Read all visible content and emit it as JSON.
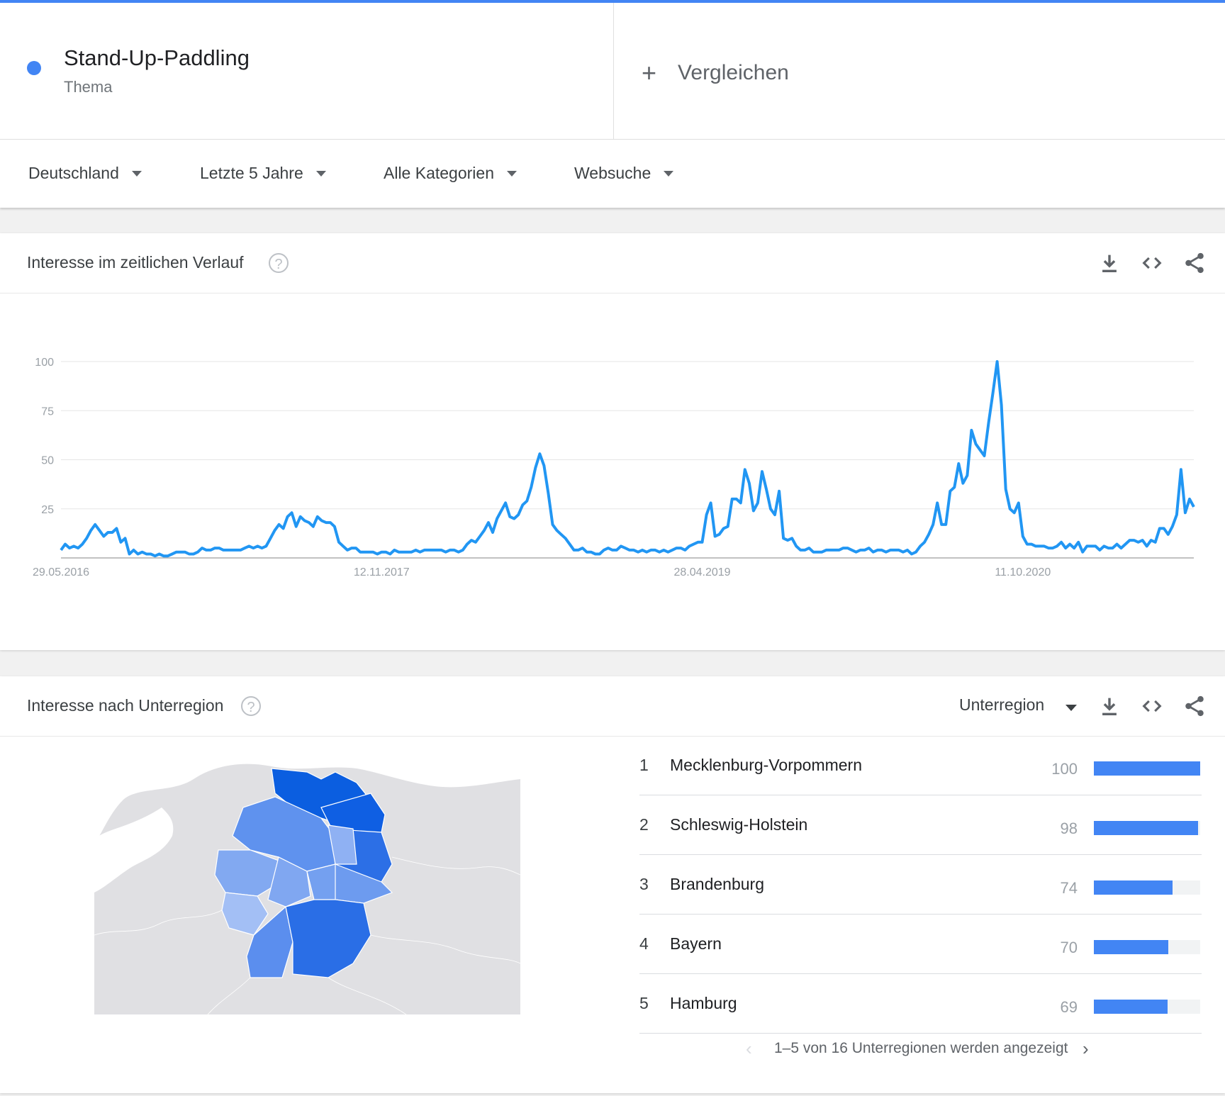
{
  "term": {
    "title": "Stand-Up-Paddling",
    "type": "Thema",
    "color": "#4285f4"
  },
  "compare": {
    "label": "Vergleichen"
  },
  "filters": [
    {
      "label": "Deutschland"
    },
    {
      "label": "Letzte 5 Jahre"
    },
    {
      "label": "Alle Kategorien"
    },
    {
      "label": "Websuche"
    }
  ],
  "time_section": {
    "title": "Interesse im zeitlichen Verlauf"
  },
  "region_section": {
    "title": "Interesse nach Unterregion",
    "selector": "Unterregion"
  },
  "chart_data": {
    "type": "line",
    "title": "",
    "xlabel": "",
    "ylabel": "",
    "ylim": [
      0,
      100
    ],
    "yticks": [
      100,
      75,
      50,
      25
    ],
    "xtick_labels": [
      {
        "label": "29.05.2016",
        "x": 0
      },
      {
        "label": "12.11.2017",
        "x": 75
      },
      {
        "label": "28.04.2019",
        "x": 150
      },
      {
        "label": "11.10.2020",
        "x": 225
      }
    ],
    "grid": true,
    "color": "#2196f3",
    "series": [
      {
        "values": [
          4,
          7,
          5,
          6,
          5,
          7,
          10,
          14,
          17,
          14,
          11,
          13,
          13,
          15,
          8,
          10,
          2,
          4,
          2,
          3,
          2,
          2,
          1,
          2,
          1,
          1,
          2,
          3,
          3,
          3,
          2,
          2,
          3,
          5,
          4,
          4,
          5,
          5,
          4,
          4,
          4,
          4,
          4,
          5,
          6,
          5,
          6,
          5,
          6,
          10,
          14,
          17,
          15,
          21,
          23,
          16,
          21,
          19,
          18,
          16,
          21,
          19,
          18,
          18,
          16,
          8,
          6,
          4,
          5,
          5,
          3,
          3,
          3,
          3,
          2,
          3,
          3,
          2,
          4,
          3,
          3,
          3,
          3,
          4,
          3,
          4,
          4,
          4,
          4,
          4,
          3,
          4,
          4,
          3,
          4,
          7,
          9,
          8,
          11,
          14,
          18,
          13,
          20,
          24,
          28,
          21,
          20,
          22,
          27,
          29,
          36,
          46,
          53,
          47,
          33,
          17,
          14,
          12,
          10,
          7,
          4,
          4,
          5,
          3,
          3,
          2,
          2,
          4,
          5,
          4,
          4,
          6,
          5,
          4,
          4,
          3,
          4,
          3,
          4,
          4,
          3,
          4,
          3,
          4,
          5,
          5,
          4,
          6,
          7,
          8,
          8,
          22,
          28,
          11,
          12,
          15,
          16,
          30,
          30,
          28,
          45,
          38,
          24,
          28,
          44,
          35,
          25,
          22,
          34,
          10,
          9,
          10,
          6,
          4,
          4,
          5,
          3,
          3,
          3,
          4,
          4,
          4,
          4,
          5,
          5,
          4,
          3,
          4,
          4,
          5,
          3,
          4,
          4,
          3,
          4,
          4,
          4,
          3,
          4,
          2,
          3,
          6,
          8,
          12,
          17,
          28,
          17,
          17,
          34,
          36,
          48,
          38,
          42,
          65,
          58,
          55,
          52,
          69,
          84,
          100,
          78,
          35,
          25,
          23,
          28,
          11,
          7,
          7,
          6,
          6,
          6,
          5,
          5,
          6,
          8,
          5,
          7,
          5,
          8,
          3,
          6,
          6,
          6,
          4,
          6,
          5,
          5,
          7,
          5,
          7,
          9,
          9,
          8,
          9,
          6,
          9,
          8,
          15,
          15,
          12,
          16,
          22,
          45,
          23,
          30,
          26
        ]
      }
    ]
  },
  "regions": [
    {
      "rank": "1",
      "name": "Mecklenburg-Vorpommern",
      "value": 100
    },
    {
      "rank": "2",
      "name": "Schleswig-Holstein",
      "value": 98
    },
    {
      "rank": "3",
      "name": "Brandenburg",
      "value": 74
    },
    {
      "rank": "4",
      "name": "Bayern",
      "value": 70
    },
    {
      "rank": "5",
      "name": "Hamburg",
      "value": 69
    }
  ],
  "pager": {
    "text": "1–5 von 16 Unterregionen werden angezeigt"
  }
}
